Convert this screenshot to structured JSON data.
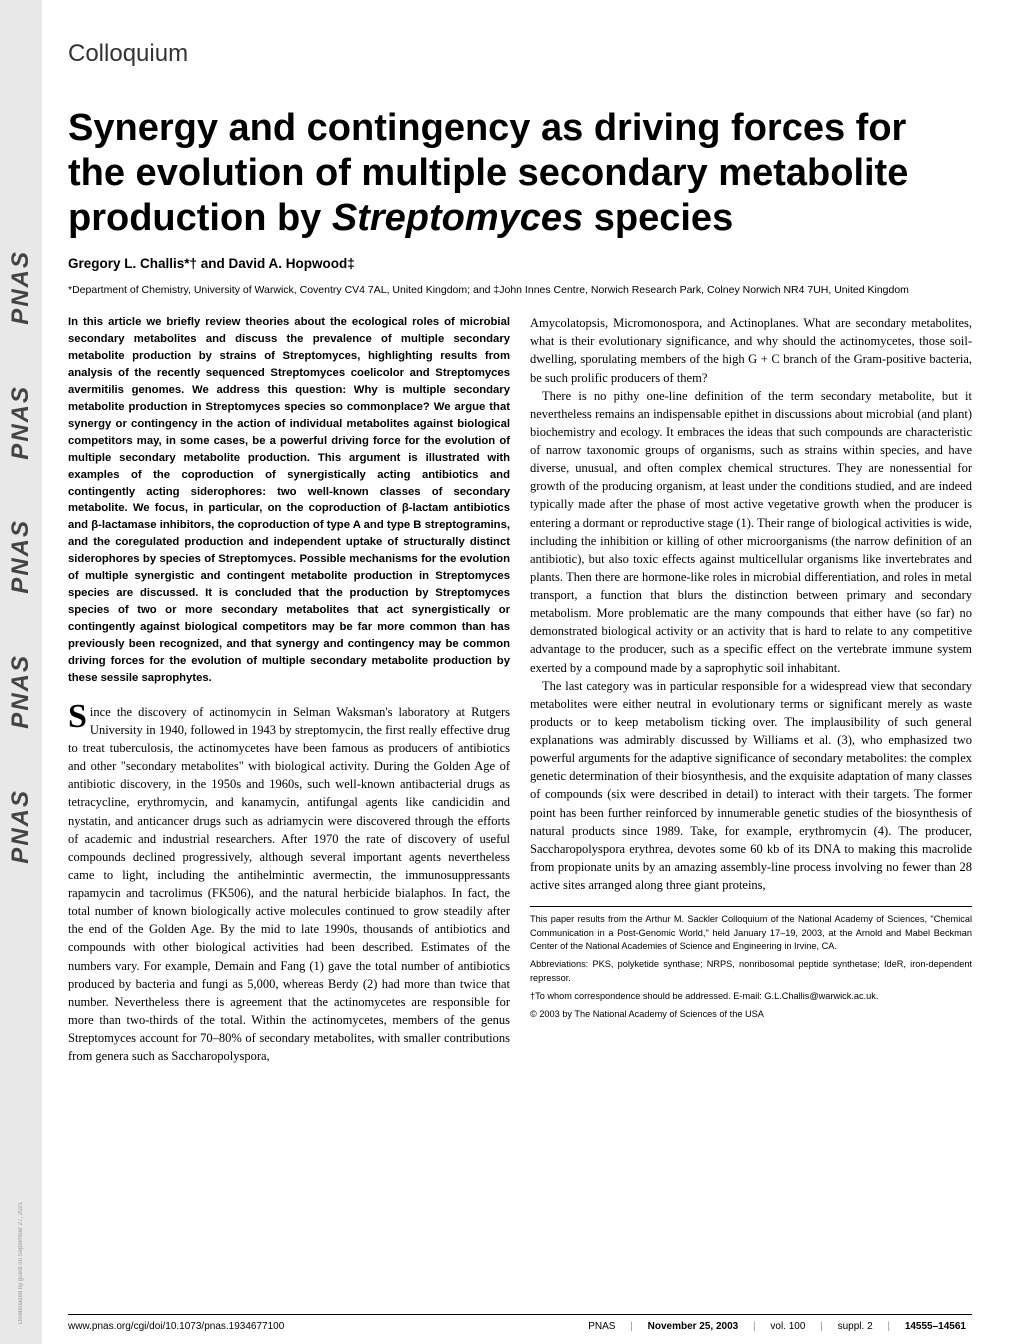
{
  "sidebar": {
    "labels": [
      "PNAS",
      "PNAS",
      "PNAS",
      "PNAS",
      "PNAS"
    ],
    "note": "Downloaded by guest on September 27, 2021"
  },
  "section": "Colloquium",
  "title_pre": "Synergy and contingency as driving forces for the evolution of multiple secondary metabolite production by ",
  "title_italic": "Streptomyces",
  "title_post": " species",
  "authors": "Gregory L. Challis*† and David A. Hopwood‡",
  "affiliations": "*Department of Chemistry, University of Warwick, Coventry CV4 7AL, United Kingdom; and ‡John Innes Centre, Norwich Research Park, Colney Norwich NR4 7UH, United Kingdom",
  "abstract": "In this article we briefly review theories about the ecological roles of microbial secondary metabolites and discuss the prevalence of multiple secondary metabolite production by strains of Streptomyces, highlighting results from analysis of the recently sequenced Streptomyces coelicolor and Streptomyces avermitilis genomes. We address this question: Why is multiple secondary metabolite production in Streptomyces species so commonplace? We argue that synergy or contingency in the action of individual metabolites against biological competitors may, in some cases, be a powerful driving force for the evolution of multiple secondary metabolite production. This argument is illustrated with examples of the coproduction of synergistically acting antibiotics and contingently acting siderophores: two well-known classes of secondary metabolite. We focus, in particular, on the coproduction of β-lactam antibiotics and β-lactamase inhibitors, the coproduction of type A and type B streptogramins, and the coregulated production and independent uptake of structurally distinct siderophores by species of Streptomyces. Possible mechanisms for the evolution of multiple synergistic and contingent metabolite production in Streptomyces species are discussed. It is concluded that the production by Streptomyces species of two or more secondary metabolites that act synergistically or contingently against biological competitors may be far more common than has previously been recognized, and that synergy and contingency may be common driving forces for the evolution of multiple secondary metabolite production by these sessile saprophytes.",
  "dropcap": "S",
  "body_left": "ince the discovery of actinomycin in Selman Waksman's laboratory at Rutgers University in 1940, followed in 1943 by streptomycin, the first really effective drug to treat tuberculosis, the actinomycetes have been famous as producers of antibiotics and other \"secondary metabolites\" with biological activity. During the Golden Age of antibiotic discovery, in the 1950s and 1960s, such well-known antibacterial drugs as tetracycline, erythromycin, and kanamycin, antifungal agents like candicidin and nystatin, and anticancer drugs such as adriamycin were discovered through the efforts of academic and industrial researchers. After 1970 the rate of discovery of useful compounds declined progressively, although several important agents nevertheless came to light, including the antihelmintic avermectin, the immunosuppressants rapamycin and tacrolimus (FK506), and the natural herbicide bialaphos. In fact, the total number of known biologically active molecules continued to grow steadily after the end of the Golden Age. By the mid to late 1990s, thousands of antibiotics and compounds with other biological activities had been described. Estimates of the numbers vary. For example, Demain and Fang (1) gave the total number of antibiotics produced by bacteria and fungi as 5,000, whereas Berdy (2) had more than twice that number. Nevertheless there is agreement that the actinomycetes are responsible for more than two-thirds of the total. Within the actinomycetes, members of the genus Streptomyces account for 70–80% of secondary metabolites, with smaller contributions from genera such as Saccharopolyspora,",
  "body_right_1": "Amycolatopsis, Micromonospora, and Actinoplanes. What are secondary metabolites, what is their evolutionary significance, and why should the actinomycetes, those soil-dwelling, sporulating members of the high G + C branch of the Gram-positive bacteria, be such prolific producers of them?",
  "body_right_2": "There is no pithy one-line definition of the term secondary metabolite, but it nevertheless remains an indispensable epithet in discussions about microbial (and plant) biochemistry and ecology. It embraces the ideas that such compounds are characteristic of narrow taxonomic groups of organisms, such as strains within species, and have diverse, unusual, and often complex chemical structures. They are nonessential for growth of the producing organism, at least under the conditions studied, and are indeed typically made after the phase of most active vegetative growth when the producer is entering a dormant or reproductive stage (1). Their range of biological activities is wide, including the inhibition or killing of other microorganisms (the narrow definition of an antibiotic), but also toxic effects against multicellular organisms like invertebrates and plants. Then there are hormone-like roles in microbial differentiation, and roles in metal transport, a function that blurs the distinction between primary and secondary metabolism. More problematic are the many compounds that either have (so far) no demonstrated biological activity or an activity that is hard to relate to any competitive advantage to the producer, such as a specific effect on the vertebrate immune system exerted by a compound made by a saprophytic soil inhabitant.",
  "body_right_3": "The last category was in particular responsible for a widespread view that secondary metabolites were either neutral in evolutionary terms or significant merely as waste products or to keep metabolism ticking over. The implausibility of such general explanations was admirably discussed by Williams et al. (3), who emphasized two powerful arguments for the adaptive significance of secondary metabolites: the complex genetic determination of their biosynthesis, and the exquisite adaptation of many classes of compounds (six were described in detail) to interact with their targets. The former point has been further reinforced by innumerable genetic studies of the biosynthesis of natural products since 1989. Take, for example, erythromycin (4). The producer, Saccharopolyspora erythrea, devotes some 60 kb of its DNA to making this macrolide from propionate units by an amazing assembly-line process involving no fewer than 28 active sites arranged along three giant proteins,",
  "footnotes": {
    "source": "This paper results from the Arthur M. Sackler Colloquium of the National Academy of Sciences, \"Chemical Communication in a Post-Genomic World,\" held January 17–19, 2003, at the Arnold and Mabel Beckman Center of the National Academies of Science and Engineering in Irvine, CA.",
    "abbrev": "Abbreviations: PKS, polyketide synthase; NRPS, nonribosomal peptide synthetase; IdeR, iron-dependent repressor.",
    "corr": "†To whom correspondence should be addressed. E-mail: G.L.Challis@warwick.ac.uk.",
    "copyright": "© 2003 by The National Academy of Sciences of the USA"
  },
  "footer": {
    "doi": "www.pnas.org/cgi/doi/10.1073/pnas.1934677100",
    "journal": "PNAS",
    "date": "November 25, 2003",
    "volume": "vol. 100",
    "issue": "suppl. 2",
    "pages": "14555–14561"
  }
}
